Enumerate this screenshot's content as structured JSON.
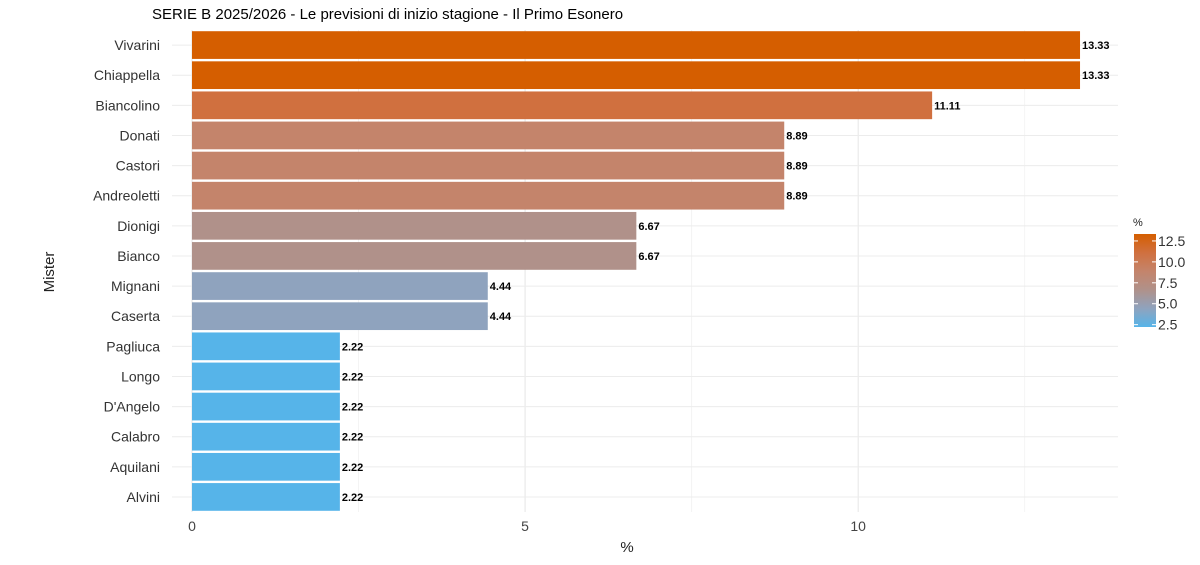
{
  "chart_data": {
    "type": "bar",
    "orientation": "horizontal",
    "title": "SERIE B 2025/2026 - Le previsioni di inizio stagione - Il Primo Esonero",
    "xlabel": "%",
    "ylabel": "Mister",
    "xlim": [
      -0.3,
      13.9
    ],
    "x_ticks": [
      0,
      5,
      10
    ],
    "x_tick_labels": [
      "0",
      "5",
      "10"
    ],
    "grid": true,
    "categories": [
      "Vivarini",
      "Chiappella",
      "Biancolino",
      "Donati",
      "Castori",
      "Andreoletti",
      "Dionigi",
      "Bianco",
      "Mignani",
      "Caserta",
      "Pagliuca",
      "Longo",
      "D'Angelo",
      "Calabro",
      "Aquilani",
      "Alvini"
    ],
    "values": [
      13.33,
      13.33,
      11.11,
      8.89,
      8.89,
      8.89,
      6.67,
      6.67,
      4.44,
      4.44,
      2.22,
      2.22,
      2.22,
      2.22,
      2.22,
      2.22
    ],
    "value_labels": [
      "13.33",
      "13.33",
      "11.11",
      "8.89",
      "8.89",
      "8.89",
      "6.67",
      "6.67",
      "4.44",
      "4.44",
      "2.22",
      "2.22",
      "2.22",
      "2.22",
      "2.22",
      "2.22"
    ],
    "legend": {
      "title": "%",
      "placement": "right",
      "type": "colorbar",
      "range": [
        2.22,
        13.33
      ],
      "ticks": [
        2.5,
        5.0,
        7.5,
        10.0,
        12.5
      ],
      "tick_labels": [
        "2.5",
        "5.0",
        "7.5",
        "10.0",
        "12.5"
      ],
      "gradient": [
        {
          "value": 2.22,
          "color": "#56B4E9"
        },
        {
          "value": 4.44,
          "color": "#8FA3BE"
        },
        {
          "value": 6.67,
          "color": "#B0918A"
        },
        {
          "value": 8.89,
          "color": "#C4846B"
        },
        {
          "value": 11.11,
          "color": "#D0703F"
        },
        {
          "value": 13.33,
          "color": "#D55E00"
        }
      ]
    }
  }
}
